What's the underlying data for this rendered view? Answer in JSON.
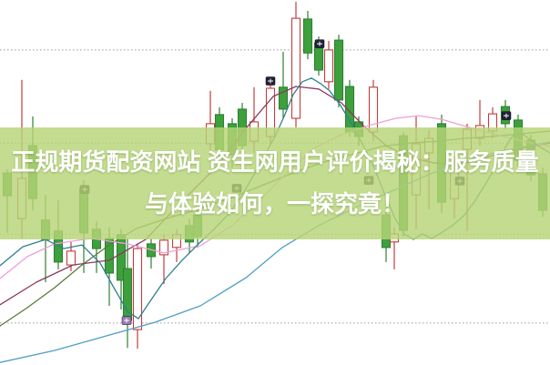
{
  "banner": {
    "line1": "正规期货配资网站 资生网用户评价揭秘：服务质量",
    "line2": "与体验如何，一探究竟！",
    "full_text": "正规期货配资网站 资生网用户评价揭秘：服务质量与体验如何，一探究竟！",
    "background_color": "#b7d476",
    "text_color": "#ffffff"
  },
  "chart_data": {
    "type": "candlestick",
    "title": "",
    "axis_tick_labels_visible": false,
    "legend_visible": false,
    "grid": "horizontal-dotted",
    "grid_color": "#9a9a9a",
    "price_scale": {
      "min": 0,
      "max": 100,
      "note": "no axis labels visible; arbitrary 0-100 scale"
    },
    "gridlines_price": [
      86.3,
      60.8,
      35.7,
      11.5
    ],
    "colors": {
      "up_stroke": "#c43c3c",
      "up_fill": "#ffffff",
      "down_fill": "#3da03d",
      "down_stroke": "#2e8030",
      "marker_dark": "#20203a",
      "marker_purple": "#9b7bb8"
    },
    "candles_format": [
      "x_px",
      "open",
      "high",
      "low",
      "close"
    ],
    "candles": [
      [
        8,
        52.6,
        53.6,
        36.2,
        46.4
      ],
      [
        24,
        40.1,
        78.1,
        34.7,
        51.1
      ],
      [
        36,
        60.1,
        68.1,
        42.4,
        45.6
      ],
      [
        50,
        39.7,
        46.6,
        22.7,
        34.4
      ],
      [
        64,
        36.7,
        45.1,
        26.2,
        28.2
      ],
      [
        78,
        27.4,
        33.7,
        25.7,
        31.2
      ],
      [
        92,
        48.4,
        50.6,
        25.2,
        36.2
      ],
      [
        106,
        37.2,
        39.4,
        25.2,
        31.9
      ],
      [
        120,
        34.7,
        37.7,
        16.2,
        25.2
      ],
      [
        133,
        35.7,
        37.2,
        15.2,
        23.2
      ],
      [
        140,
        26.4,
        34.7,
        4.7,
        12.2
      ],
      [
        151,
        9.7,
        33.2,
        4.5,
        31.9
      ],
      [
        166,
        33.2,
        34.7,
        26.4,
        29.7
      ],
      [
        180,
        30.2,
        35.7,
        22.2,
        34.2
      ],
      [
        194,
        32.2,
        37.2,
        28.2,
        35.7
      ],
      [
        208,
        38.2,
        40.1,
        30.7,
        33.7
      ],
      [
        217,
        41.1,
        43.1,
        32.2,
        35.2
      ],
      [
        231,
        60.6,
        75.1,
        57.6,
        66.1
      ],
      [
        241,
        68.6,
        70.6,
        55.1,
        58.9
      ],
      [
        255,
        66.1,
        67.6,
        53.9,
        57.6
      ],
      [
        266,
        70.1,
        71.8,
        56.4,
        60.1
      ],
      [
        279,
        61.3,
        76.1,
        58.1,
        66.6
      ],
      [
        297,
        62.6,
        77.1,
        60.6,
        75.8
      ],
      [
        311,
        76.1,
        85.8,
        67.6,
        70.1
      ],
      [
        325,
        67.6,
        99.5,
        65.1,
        95.0
      ],
      [
        338,
        94.8,
        97.0,
        83.8,
        85.5
      ],
      [
        350,
        88.3,
        90.0,
        79.3,
        80.8
      ],
      [
        361,
        77.6,
        88.8,
        75.6,
        86.3
      ],
      [
        372,
        89.0,
        90.5,
        70.6,
        72.6
      ],
      [
        384,
        76.3,
        78.1,
        62.6,
        63.8
      ],
      [
        394,
        66.6,
        68.1,
        60.1,
        62.6
      ],
      [
        410,
        63.8,
        78.1,
        61.3,
        76.1
      ],
      [
        424,
        41.1,
        43.1,
        28.2,
        32.2
      ],
      [
        433,
        33.7,
        37.7,
        26.2,
        35.9
      ],
      [
        443,
        62.8,
        63.8,
        35.2,
        36.9
      ],
      [
        457,
        46.6,
        68.1,
        37.2,
        60.6
      ],
      [
        471,
        58.1,
        64.3,
        42.6,
        62.1
      ],
      [
        485,
        66.1,
        68.6,
        41.6,
        44.6
      ],
      [
        499,
        45.6,
        57.1,
        40.1,
        53.6
      ],
      [
        513,
        59.1,
        66.1,
        36.7,
        64.6
      ],
      [
        527,
        62.1,
        72.6,
        60.1,
        65.6
      ],
      [
        541,
        64.1,
        70.6,
        62.1,
        68.8
      ],
      [
        555,
        70.8,
        72.6,
        64.6,
        66.1
      ],
      [
        569,
        67.1,
        68.6,
        54.4,
        56.1
      ],
      [
        583,
        61.6,
        63.1,
        50.4,
        52.1
      ],
      [
        596,
        52.4,
        54.1,
        40.6,
        42.4
      ]
    ],
    "markers_format": [
      "x_px",
      "price",
      "color_key"
    ],
    "markers": [
      [
        93,
        48.1,
        "marker_dark"
      ],
      [
        139,
        12.2,
        "marker_purple"
      ],
      [
        260,
        48.4,
        "marker_dark"
      ],
      [
        297,
        77.8,
        "marker_dark"
      ],
      [
        351,
        88.0,
        "marker_dark"
      ],
      [
        405,
        50.6,
        "marker_dark"
      ],
      [
        505,
        50.4,
        "marker_dark"
      ],
      [
        556,
        68.3,
        "marker_dark"
      ]
    ],
    "ma_lines": [
      {
        "name": "ma-long-blue",
        "color": "#4f9ec4",
        "points": [
          [
            0,
            0.7
          ],
          [
            60,
            4.0
          ],
          [
            120,
            8.2
          ],
          [
            170,
            11.7
          ],
          [
            220,
            16.2
          ],
          [
            270,
            23.9
          ],
          [
            310,
            32.2
          ],
          [
            350,
            38.2
          ],
          [
            390,
            43.1
          ],
          [
            430,
            47.6
          ],
          [
            470,
            52.1
          ],
          [
            510,
            55.9
          ],
          [
            550,
            58.6
          ],
          [
            604,
            61.1
          ]
        ]
      },
      {
        "name": "ma-olive",
        "color": "#5a7a3a",
        "points": [
          [
            0,
            10.7
          ],
          [
            30,
            15.7
          ],
          [
            60,
            21.2
          ],
          [
            90,
            27.4
          ],
          [
            120,
            32.9
          ],
          [
            150,
            37.4
          ],
          [
            180,
            39.9
          ],
          [
            210,
            42.1
          ],
          [
            240,
            44.6
          ],
          [
            270,
            47.4
          ],
          [
            300,
            50.4
          ],
          [
            330,
            53.4
          ],
          [
            360,
            55.9
          ],
          [
            390,
            57.9
          ],
          [
            420,
            59.9
          ],
          [
            450,
            60.8
          ],
          [
            480,
            61.3
          ],
          [
            510,
            62.1
          ],
          [
            540,
            62.6
          ],
          [
            570,
            63.3
          ],
          [
            604,
            64.1
          ]
        ]
      },
      {
        "name": "ma-maroon",
        "color": "#8b3a62",
        "points": [
          [
            0,
            16.5
          ],
          [
            40,
            22.7
          ],
          [
            80,
            27.4
          ],
          [
            120,
            28.7
          ],
          [
            160,
            34.4
          ],
          [
            200,
            44.9
          ],
          [
            240,
            54.9
          ],
          [
            270,
            64.8
          ],
          [
            300,
            73.6
          ],
          [
            325,
            76.3
          ],
          [
            350,
            75.6
          ],
          [
            375,
            71.8
          ],
          [
            400,
            65.3
          ],
          [
            425,
            59.9
          ],
          [
            450,
            56.9
          ],
          [
            475,
            55.4
          ],
          [
            500,
            54.9
          ],
          [
            525,
            56.1
          ],
          [
            550,
            58.1
          ],
          [
            577,
            59.6
          ],
          [
            604,
            60.8
          ]
        ]
      },
      {
        "name": "ma-pink",
        "color": "#ef9fd8",
        "points": [
          [
            0,
            23.7
          ],
          [
            30,
            29.7
          ],
          [
            60,
            33.2
          ],
          [
            100,
            34.7
          ],
          [
            140,
            33.2
          ],
          [
            180,
            30.7
          ],
          [
            220,
            32.7
          ],
          [
            255,
            38.2
          ],
          [
            285,
            45.1
          ],
          [
            315,
            52.6
          ],
          [
            345,
            59.4
          ],
          [
            375,
            63.1
          ],
          [
            405,
            65.6
          ],
          [
            435,
            67.6
          ],
          [
            460,
            68.3
          ],
          [
            485,
            67.3
          ],
          [
            515,
            65.1
          ],
          [
            545,
            63.1
          ],
          [
            575,
            61.3
          ],
          [
            604,
            59.9
          ]
        ]
      },
      {
        "name": "ma-teal",
        "color": "#2f7f8f",
        "points": [
          [
            0,
            27.2
          ],
          [
            25,
            32.4
          ],
          [
            50,
            34.4
          ],
          [
            70,
            31.9
          ],
          [
            90,
            32.9
          ],
          [
            110,
            27.9
          ],
          [
            125,
            21.2
          ],
          [
            140,
            14.7
          ],
          [
            152,
            12.7
          ],
          [
            165,
            17.5
          ],
          [
            182,
            23.7
          ],
          [
            200,
            28.7
          ],
          [
            218,
            33.2
          ],
          [
            235,
            37.2
          ],
          [
            252,
            41.6
          ],
          [
            266,
            46.6
          ],
          [
            280,
            52.6
          ],
          [
            292,
            58.1
          ],
          [
            302,
            62.6
          ],
          [
            312,
            68.1
          ],
          [
            322,
            74.1
          ],
          [
            332,
            77.6
          ],
          [
            342,
            78.6
          ],
          [
            352,
            77.1
          ],
          [
            362,
            75.1
          ],
          [
            374,
            71.1
          ],
          [
            386,
            66.1
          ],
          [
            398,
            60.6
          ],
          [
            410,
            54.6
          ],
          [
            422,
            47.1
          ],
          [
            434,
            40.1
          ],
          [
            444,
            35.9
          ],
          [
            454,
            34.4
          ],
          [
            464,
            35.9
          ],
          [
            474,
            34.7
          ],
          [
            486,
            36.4
          ],
          [
            498,
            38.4
          ],
          [
            510,
            41.1
          ],
          [
            522,
            45.1
          ],
          [
            534,
            49.9
          ],
          [
            546,
            55.1
          ],
          [
            556,
            60.1
          ],
          [
            564,
            63.1
          ],
          [
            572,
            63.6
          ],
          [
            582,
            61.8
          ],
          [
            592,
            59.9
          ],
          [
            604,
            58.1
          ]
        ]
      }
    ]
  }
}
